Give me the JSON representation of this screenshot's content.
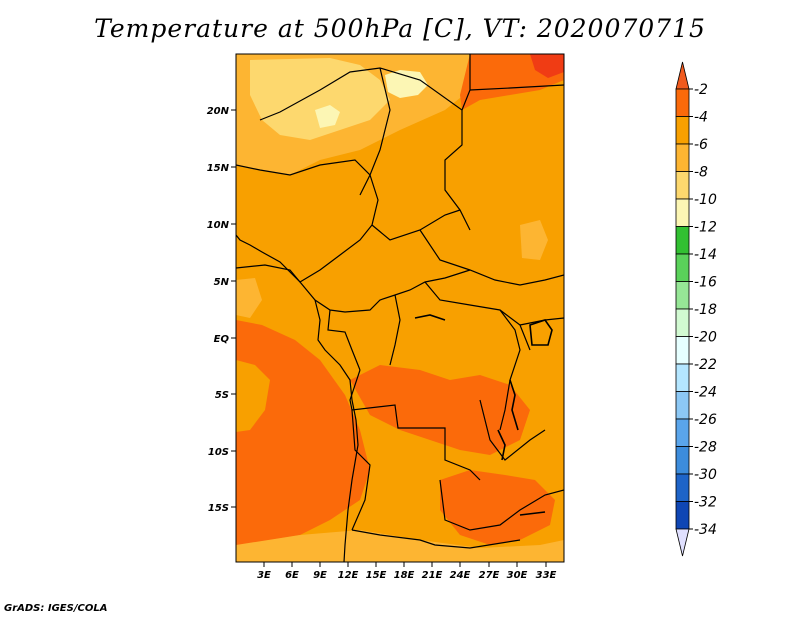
{
  "title": "Temperature at 500hPa [C], VT: 2020070715",
  "credit": "GrADS: IGES/COLA",
  "axes": {
    "lat_ticks": [
      "20N",
      "15N",
      "10N",
      "5N",
      "EQ",
      "5S",
      "10S",
      "15S"
    ],
    "lon_ticks": [
      "3E",
      "6E",
      "9E",
      "12E",
      "15E",
      "18E",
      "21E",
      "24E",
      "27E",
      "30E",
      "33E"
    ]
  },
  "colorbar": {
    "labels": [
      "-2",
      "-4",
      "-6",
      "-8",
      "-10",
      "-12",
      "-14",
      "-16",
      "-18",
      "-20",
      "-22",
      "-24",
      "-26",
      "-28",
      "-30",
      "-32",
      "-34"
    ],
    "colors": [
      "#f05a1e",
      "#fb6a0a",
      "#f8a000",
      "#fdb532",
      "#fdd86e",
      "#fcf6b4",
      "#32c032",
      "#5ad25a",
      "#96e696",
      "#d2fad2",
      "#e6ffff",
      "#b4e6ff",
      "#8cc8f5",
      "#5aa5eb",
      "#3c8cdc",
      "#1e64c8",
      "#0f46b4",
      "#08086e",
      "#e0e0ff"
    ]
  },
  "map_colors": {
    "base": "#f8a000",
    "warm": "#fb6a0a",
    "cool": "#fdb532",
    "coolest": "#fdd86e",
    "palest": "#fcf6b4",
    "warmest": "#f03c14",
    "border": "#000000"
  }
}
